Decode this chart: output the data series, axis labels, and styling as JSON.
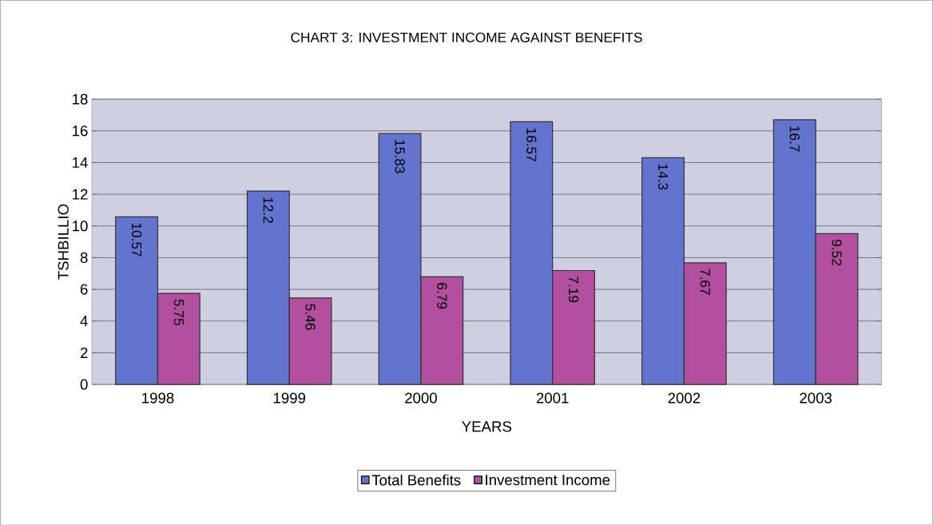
{
  "chart_data": {
    "type": "bar",
    "title": "CHART 3: INVESTMENT INCOME AGAINST BENEFITS",
    "xlabel": "YEARS",
    "ylabel": "TSHBILLIO",
    "categories": [
      "1998",
      "1999",
      "2000",
      "2001",
      "2002",
      "2003"
    ],
    "series": [
      {
        "name": "Total Benefits",
        "color": "#6374cf",
        "values": [
          10.57,
          12.2,
          15.83,
          16.57,
          14.3,
          16.7
        ]
      },
      {
        "name": "Investment Income",
        "color": "#b24f9e",
        "values": [
          5.75,
          5.46,
          6.79,
          7.19,
          7.67,
          9.52
        ]
      }
    ],
    "ylim": [
      0,
      18
    ],
    "yticks": [
      0,
      2,
      4,
      6,
      8,
      10,
      12,
      14,
      16,
      18
    ],
    "grid": "y",
    "legend": "bottom",
    "data_labels": true
  }
}
